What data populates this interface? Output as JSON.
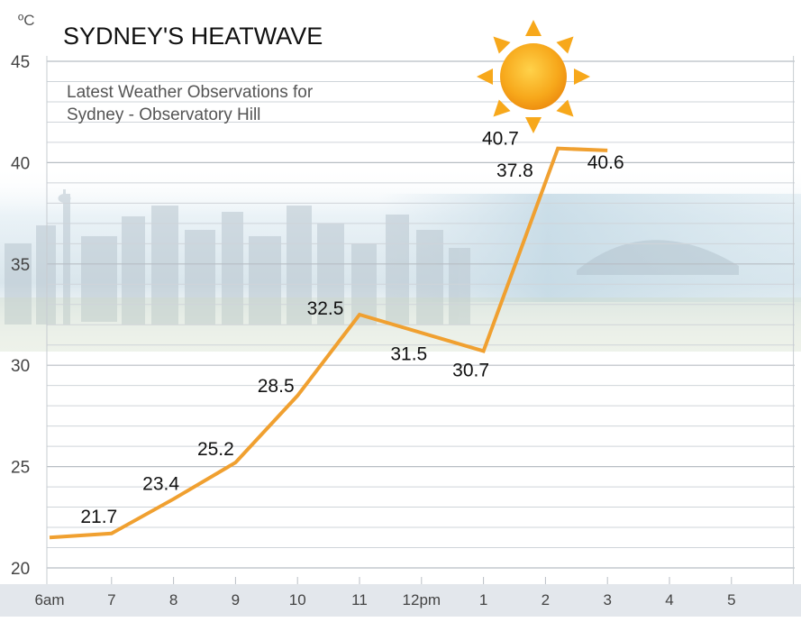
{
  "chart_data": {
    "type": "line",
    "title": "SYDNEY'S HEATWAVE",
    "subtitle_lines": [
      "Latest Weather Observations for",
      "Sydney - Observatory Hill"
    ],
    "unit": "ºC",
    "ylim": [
      20,
      45
    ],
    "yticks": [
      "45",
      "40",
      "35",
      "30",
      "25",
      "20"
    ],
    "ytick_values": [
      45,
      40,
      35,
      30,
      25,
      20
    ],
    "categories": [
      "6am",
      "7",
      "8",
      "9",
      "10",
      "11",
      "12pm",
      "1",
      "2",
      "3",
      "4",
      "5"
    ],
    "series": [
      {
        "x": [
          0,
          1,
          2,
          3,
          4,
          5,
          7,
          8.2,
          9
        ],
        "values": [
          21.5,
          21.7,
          23.4,
          25.2,
          28.5,
          32.5,
          30.7,
          40.7,
          40.6
        ]
      }
    ],
    "data_labels": [
      {
        "text": "21.7",
        "x": 1,
        "y": 21.7
      },
      {
        "text": "23.4",
        "x": 2,
        "y": 23.4
      },
      {
        "text": "25.2",
        "x": 3,
        "y": 25.2
      },
      {
        "text": "28.5",
        "x": 4,
        "y": 28.5
      },
      {
        "text": "32.5",
        "x": 5,
        "y": 32.5
      },
      {
        "text": "31.5",
        "x": 6,
        "y": 31.5
      },
      {
        "text": "30.7",
        "x": 7,
        "y": 30.7
      },
      {
        "text": "37.8",
        "x": 8,
        "y": 37.8
      },
      {
        "text": "40.7",
        "x": 8,
        "y": 40.7
      },
      {
        "text": "40.6",
        "x": 9,
        "y": 40.6
      }
    ],
    "grid": true,
    "line_color": "#f0a030",
    "sun_color": "#f7a81b"
  }
}
